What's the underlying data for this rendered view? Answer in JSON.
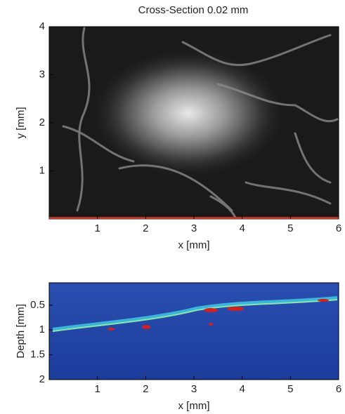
{
  "chart_data": [
    {
      "type": "image",
      "title": "Cross-Section 0.02 mm",
      "xlabel": "x [mm]",
      "ylabel": "y [mm]",
      "xlim": [
        0,
        6
      ],
      "ylim": [
        0,
        4
      ],
      "xticks": [
        1,
        2,
        3,
        4,
        5,
        6
      ],
      "yticks": [
        1,
        2,
        3,
        4
      ],
      "marker_y": 0.02,
      "marker_color": "#c0392b"
    },
    {
      "type": "heatmap",
      "xlabel": "x [mm]",
      "ylabel": "Depth [mm]",
      "xlim": [
        0,
        6
      ],
      "ylim": [
        2,
        0.05
      ],
      "xticks": [
        1,
        2,
        3,
        4,
        5,
        6
      ],
      "yticks": [
        0.5,
        1,
        1.5,
        2
      ]
    }
  ]
}
